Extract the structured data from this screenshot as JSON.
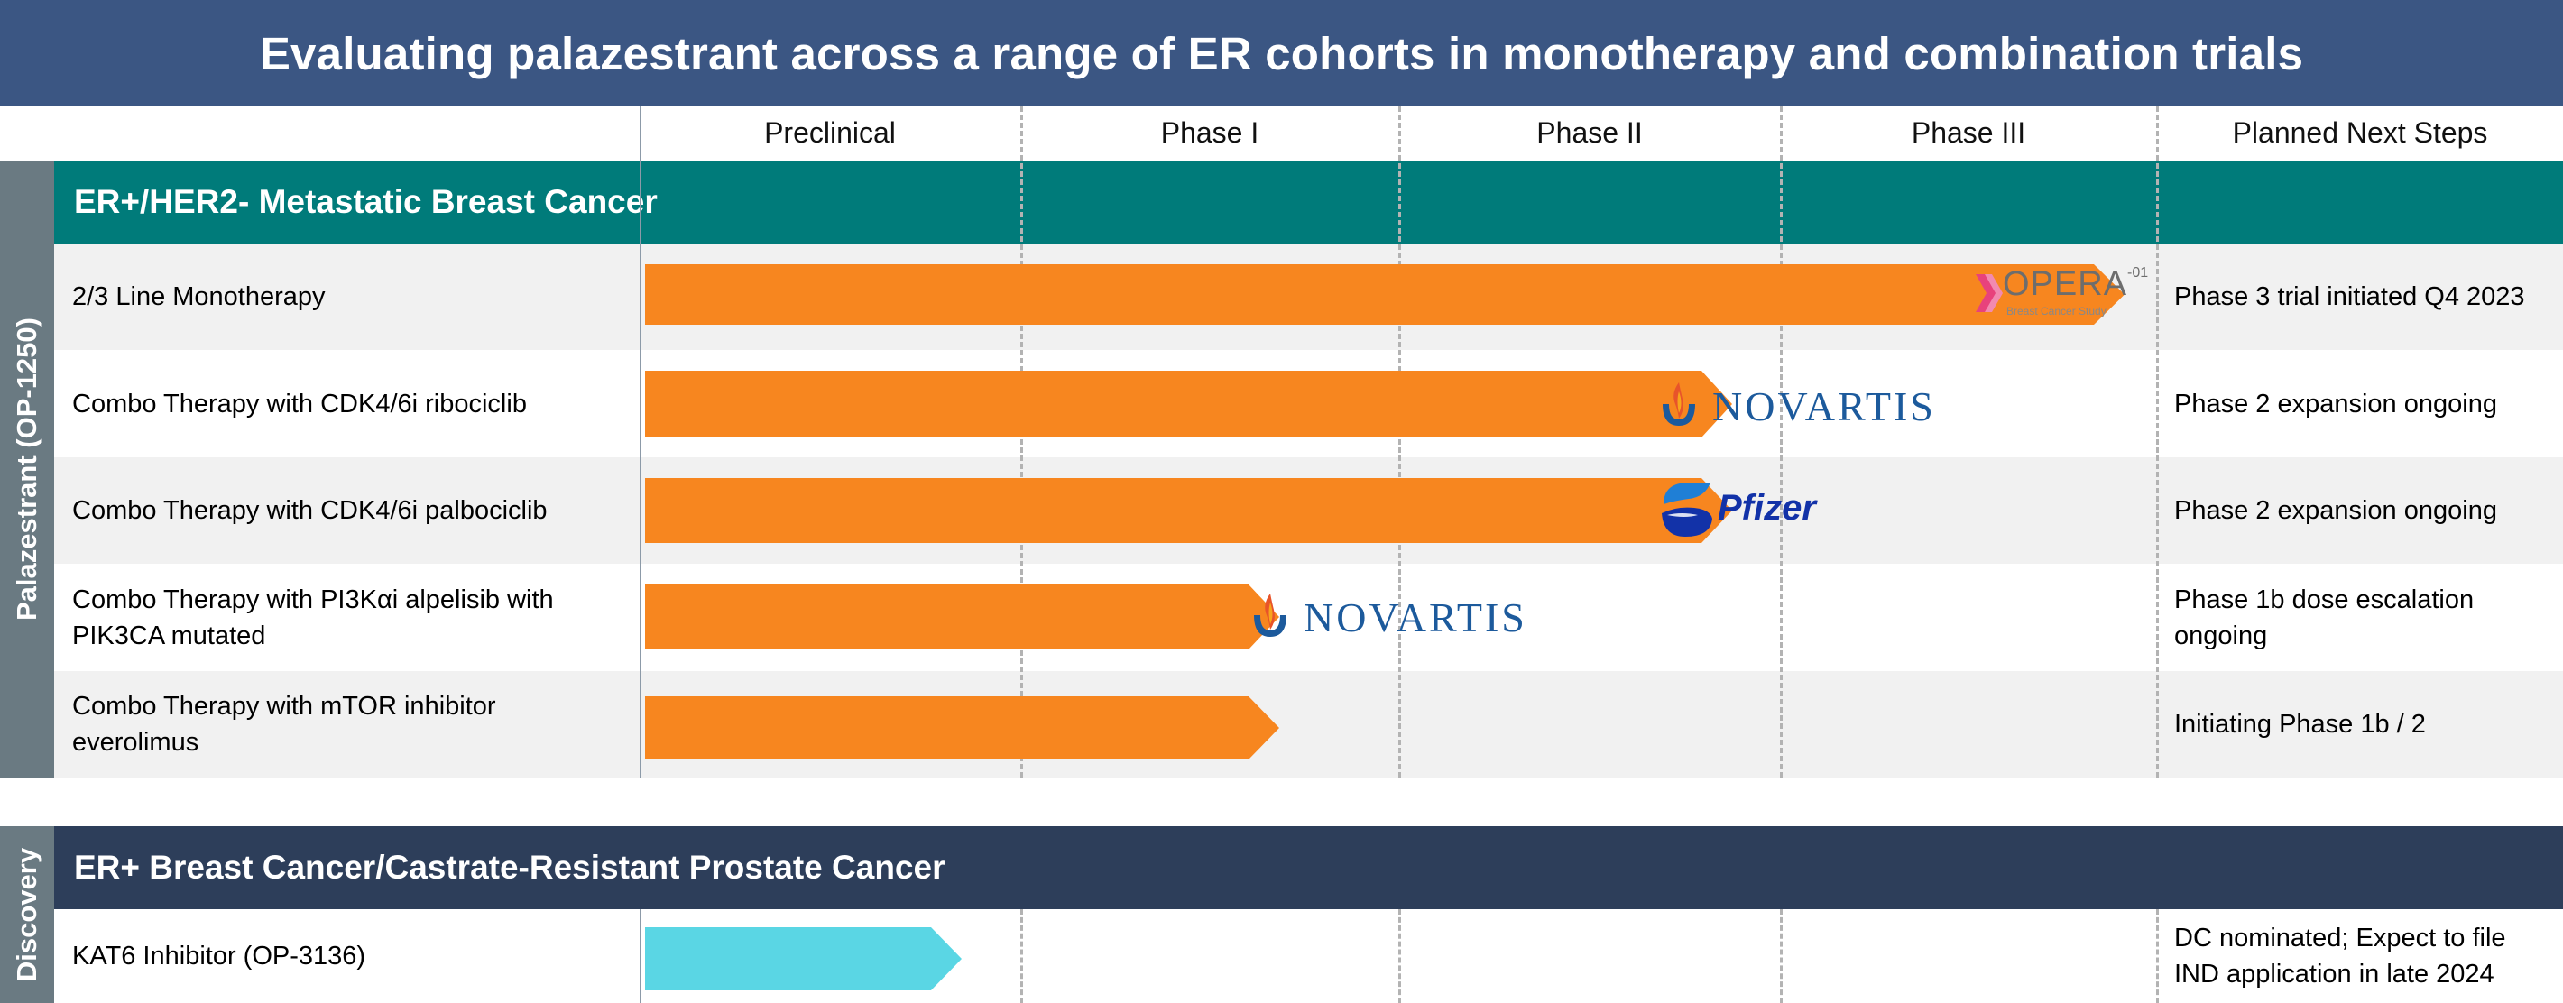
{
  "title": "Evaluating palazestrant across a range of ER cohorts in monotherapy and combination trials",
  "columns": [
    "Preclinical",
    "Phase I",
    "Phase II",
    "Phase III",
    "Planned Next Steps"
  ],
  "groups": {
    "palazestrant": {
      "side_label": "Palazestrant (OP-1250)",
      "section_title": "ER+/HER2- Metastatic Breast Cancer",
      "section_color": "#007b7a",
      "rows": [
        {
          "label": "2/3 Line Monotherapy",
          "stage_reached": "Phase III",
          "progress_fraction": 0.98,
          "partner": "OPERA-01 Breast Cancer Study",
          "next_step": "Phase 3 trial initiated Q4 2023"
        },
        {
          "label": "Combo Therapy with CDK4/6i ribociclib",
          "stage_reached": "Phase II",
          "progress_fraction": 0.72,
          "partner": "NOVARTIS",
          "next_step": "Phase 2 expansion ongoing"
        },
        {
          "label": "Combo Therapy with CDK4/6i palbociclib",
          "stage_reached": "Phase II",
          "progress_fraction": 0.72,
          "partner": "Pfizer",
          "next_step": "Phase 2 expansion ongoing"
        },
        {
          "label": "Combo Therapy with PI3Kαi alpelisib with PIK3CA mutated",
          "stage_reached": "Phase I",
          "progress_fraction": 0.42,
          "partner": "NOVARTIS",
          "next_step": "Phase 1b dose escalation ongoing"
        },
        {
          "label": "Combo Therapy with mTOR inhibitor everolimus",
          "stage_reached": "Phase I",
          "progress_fraction": 0.42,
          "partner": "",
          "next_step": "Initiating Phase 1b / 2"
        }
      ]
    },
    "discovery": {
      "side_label": "Discovery",
      "section_title": "ER+ Breast Cancer/Castrate-Resistant Prostate Cancer",
      "section_color": "#2d3e5a",
      "rows": [
        {
          "label": "KAT6 Inhibitor (OP-3136)",
          "stage_reached": "Preclinical",
          "progress_fraction": 0.21,
          "partner": "",
          "next_step": "DC nominated; Expect to file IND application in late 2024"
        }
      ]
    }
  },
  "partners": {
    "opera_main": "OPERA",
    "opera_sup": "-01",
    "opera_sub": "Breast Cancer Study",
    "novartis": "NOVARTIS",
    "pfizer": "Pfizer"
  },
  "colors": {
    "title_bar": "#3b5683",
    "bar_palazestrant": "#f7861f",
    "bar_discovery": "#5ad6e4",
    "side_label": "#6a7a82"
  }
}
